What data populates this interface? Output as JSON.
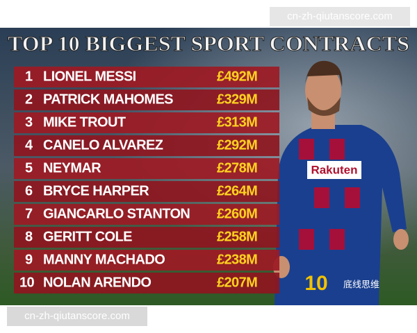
{
  "header": {
    "title": "TOP 10 BIGGEST SPORT CONTRACTS"
  },
  "table": {
    "rows": [
      [
        "1",
        "LIONEL MESSI",
        "£492M"
      ],
      [
        "2",
        "PATRICK MAHOMES",
        "£329M"
      ],
      [
        "3",
        "MIKE TROUT",
        "£313M"
      ],
      [
        "4",
        "CANELO ALVAREZ",
        "£292M"
      ],
      [
        "5",
        "NEYMAR",
        "£278M"
      ],
      [
        "6",
        "BRYCE HARPER",
        "£264M"
      ],
      [
        "7",
        "GIANCARLO STANTON",
        "£260M"
      ],
      [
        "8",
        "GERITT COLE",
        "£258M"
      ],
      [
        "9",
        "MANNY MACHADO",
        "£238M"
      ],
      [
        "10",
        "NOLAN ARENDO",
        "£207M"
      ]
    ]
  },
  "jersey": {
    "sponsor": "Rakuten",
    "number": "10"
  },
  "badge": "底线思维",
  "watermarks": [
    "cn-zh-qiutanscore.com",
    "cn-zh-qiutanscore.com"
  ]
}
